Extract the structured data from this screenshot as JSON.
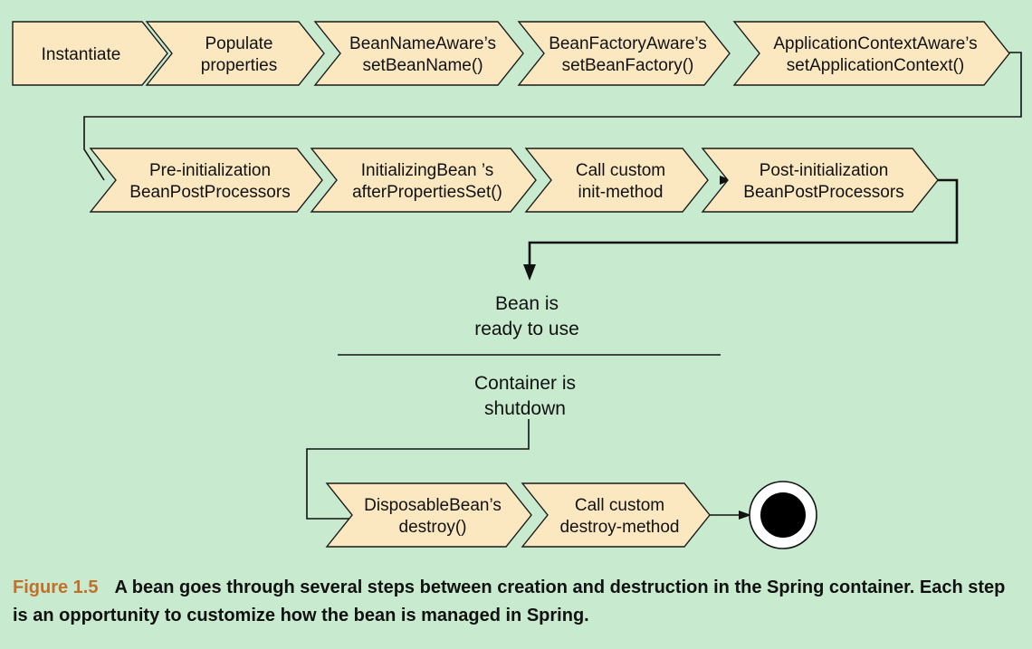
{
  "steps_row1": [
    {
      "id": "instantiate",
      "lines": [
        "Instantiate"
      ]
    },
    {
      "id": "populate-properties",
      "lines": [
        "Populate",
        "properties"
      ]
    },
    {
      "id": "bean-name-aware",
      "lines": [
        "BeanNameAware’s",
        "setBeanName()"
      ]
    },
    {
      "id": "bean-factory-aware",
      "lines": [
        "BeanFactoryAware’s",
        "setBeanFactory()"
      ]
    },
    {
      "id": "application-context-aware",
      "lines": [
        "ApplicationContextAware’s",
        "setApplicationContext()"
      ]
    }
  ],
  "steps_row2": [
    {
      "id": "pre-initialization",
      "lines": [
        "Pre-initialization",
        "BeanPostProcessors"
      ]
    },
    {
      "id": "initializing-bean",
      "lines": [
        "InitializingBean   ’s",
        "afterPropertiesSet()"
      ]
    },
    {
      "id": "init-method",
      "lines": [
        "Call custom",
        "init-method"
      ]
    },
    {
      "id": "post-initialization",
      "lines": [
        "Post-initialization",
        "BeanPostProcessors"
      ]
    }
  ],
  "ready": {
    "lines": [
      "Bean is",
      "ready to use"
    ]
  },
  "shutdown": {
    "lines": [
      "Container is",
      "shutdown"
    ]
  },
  "steps_row3": [
    {
      "id": "disposable-bean",
      "lines": [
        "DisposableBean’s",
        "destroy()"
      ]
    },
    {
      "id": "destroy-method",
      "lines": [
        "Call custom",
        "destroy-method"
      ]
    }
  ],
  "caption": {
    "figure_label": "Figure 1.5",
    "text": "A bean goes through several steps between creation and destruction in the Spring container. Each step is an opportunity to customize how the bean is managed in Spring."
  }
}
